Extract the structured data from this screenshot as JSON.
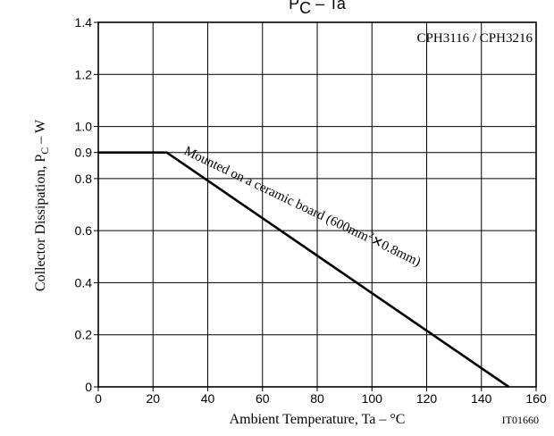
{
  "chart_data": {
    "type": "line",
    "title": "PC - Ta",
    "title_main": "P",
    "title_sub": "C",
    "title_rest": " – Ta",
    "part_label": "CPH3116 / CPH3216",
    "xlabel": "Ambient Temperature, Ta  –  °C",
    "ylabel_pre": "Collector Dissipation, P",
    "ylabel_sub": "C",
    "ylabel_post": "  –  W",
    "figure_code": "IT01660",
    "xlim": [
      0,
      160
    ],
    "ylim": [
      0,
      1.4
    ],
    "x_ticks": [
      0,
      20,
      40,
      60,
      80,
      100,
      120,
      140,
      160
    ],
    "x_tick_labels": [
      "0",
      "20",
      "40",
      "60",
      "80",
      "100",
      "120",
      "140",
      "160"
    ],
    "y_ticks": [
      0,
      0.2,
      0.4,
      0.6,
      0.8,
      0.9,
      1.0,
      1.2,
      1.4
    ],
    "y_tick_labels": [
      "0",
      "0.2",
      "0.4",
      "0.6",
      "0.8",
      "0.9",
      "1.0",
      "1.2",
      "1.4"
    ],
    "grid": true,
    "series": [
      {
        "name": "Mounted on a ceramic board (600mm²✕0.8mm)",
        "x": [
          0,
          25,
          150
        ],
        "y": [
          0.9,
          0.9,
          0
        ]
      }
    ],
    "annotation_parts": {
      "a": "Mounted on a ceramic board (600mm",
      "sup": "2",
      "times": "✕",
      "b": "0.8mm)"
    }
  }
}
